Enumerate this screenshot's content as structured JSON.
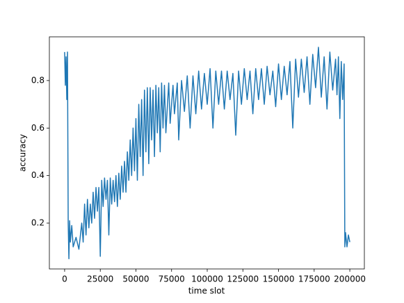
{
  "chart_data": {
    "type": "line",
    "xlabel": "time slot",
    "ylabel": "accuracy",
    "x": [
      0,
      500,
      1000,
      1500,
      2000,
      2500,
      3000,
      3500,
      4000,
      5000,
      6000,
      8000,
      10000,
      12000,
      13000,
      14000,
      15000,
      16000,
      17000,
      18000,
      19000,
      20000,
      21000,
      22000,
      23000,
      24000,
      25000,
      26000,
      27000,
      28000,
      29000,
      30000,
      31000,
      32000,
      33000,
      34000,
      35000,
      36000,
      37000,
      38000,
      39000,
      40000,
      41000,
      42000,
      43000,
      44000,
      45000,
      46000,
      47000,
      48000,
      49000,
      50000,
      51000,
      52000,
      53000,
      54000,
      55000,
      56000,
      57000,
      58000,
      59000,
      60000,
      61000,
      62000,
      63000,
      64000,
      65000,
      66000,
      67000,
      68000,
      69000,
      70000,
      71000,
      73000,
      74000,
      76000,
      77000,
      79000,
      80000,
      82000,
      84000,
      86000,
      88000,
      90000,
      92000,
      94000,
      96000,
      98000,
      100000,
      102000,
      104000,
      106000,
      108000,
      110000,
      112000,
      114000,
      116000,
      118000,
      120000,
      122000,
      124000,
      126000,
      128000,
      130000,
      132000,
      134000,
      136000,
      138000,
      140000,
      142000,
      144000,
      146000,
      148000,
      150000,
      152000,
      154000,
      156000,
      158000,
      160000,
      162000,
      164000,
      166000,
      168000,
      170000,
      172000,
      174000,
      176000,
      178000,
      180000,
      182000,
      184000,
      186000,
      188000,
      190000,
      191000,
      192000,
      193000,
      194000,
      195000,
      196000,
      196500,
      197000,
      198000,
      199000,
      200000
    ],
    "series": [
      {
        "color": "#1f77b4",
        "values": [
          0.92,
          0.78,
          0.9,
          0.72,
          0.92,
          0.2,
          0.05,
          0.21,
          0.12,
          0.19,
          0.1,
          0.14,
          0.09,
          0.2,
          0.12,
          0.28,
          0.15,
          0.3,
          0.18,
          0.28,
          0.2,
          0.33,
          0.22,
          0.35,
          0.25,
          0.35,
          0.06,
          0.38,
          0.27,
          0.39,
          0.3,
          0.38,
          0.15,
          0.39,
          0.28,
          0.38,
          0.29,
          0.4,
          0.27,
          0.41,
          0.3,
          0.44,
          0.33,
          0.46,
          0.33,
          0.5,
          0.38,
          0.55,
          0.4,
          0.6,
          0.42,
          0.64,
          0.38,
          0.7,
          0.48,
          0.72,
          0.4,
          0.76,
          0.5,
          0.77,
          0.45,
          0.77,
          0.55,
          0.76,
          0.48,
          0.78,
          0.58,
          0.77,
          0.5,
          0.79,
          0.6,
          0.78,
          0.58,
          0.79,
          0.62,
          0.78,
          0.66,
          0.79,
          0.55,
          0.8,
          0.67,
          0.82,
          0.6,
          0.82,
          0.66,
          0.84,
          0.68,
          0.83,
          0.7,
          0.85,
          0.6,
          0.84,
          0.7,
          0.84,
          0.68,
          0.84,
          0.72,
          0.83,
          0.57,
          0.84,
          0.7,
          0.85,
          0.72,
          0.84,
          0.66,
          0.85,
          0.72,
          0.85,
          0.7,
          0.86,
          0.74,
          0.84,
          0.69,
          0.87,
          0.72,
          0.86,
          0.74,
          0.88,
          0.6,
          0.89,
          0.73,
          0.89,
          0.75,
          0.9,
          0.7,
          0.91,
          0.77,
          0.94,
          0.73,
          0.9,
          0.68,
          0.92,
          0.76,
          0.89,
          0.74,
          0.9,
          0.64,
          0.88,
          0.72,
          0.87,
          0.1,
          0.16,
          0.1,
          0.15,
          0.12
        ]
      }
    ],
    "xlim": [
      -10700,
      210200
    ],
    "xticks": [
      0,
      25000,
      50000,
      75000,
      100000,
      125000,
      150000,
      175000,
      200000
    ],
    "ylim": [
      0.007,
      0.984
    ],
    "yticks": [
      0.2,
      0.4,
      0.6,
      0.8
    ],
    "grid": false
  }
}
